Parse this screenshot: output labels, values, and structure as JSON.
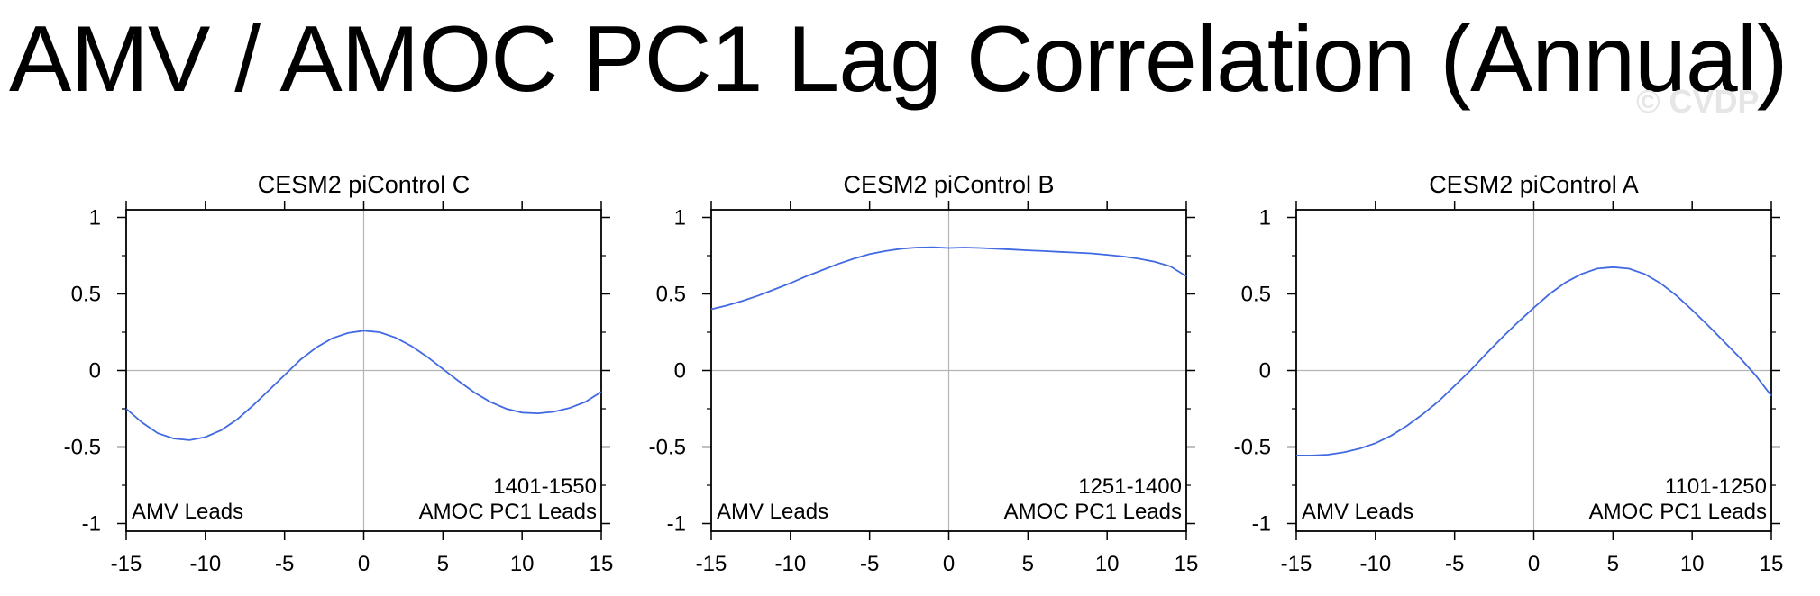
{
  "title": "AMV / AMOC PC1 Lag Correlation (Annual)",
  "watermark": "© CVDP",
  "line_color": "#4169e1",
  "chart_data": [
    {
      "type": "line",
      "title": "CESM2 piControl C",
      "period": "1401-1550",
      "left_annotation": "AMV Leads",
      "right_annotation": "AMOC PC1 Leads",
      "xlim": [
        -15,
        15
      ],
      "ylim": [
        -1.05,
        1.05
      ],
      "xticks": [
        -15,
        -10,
        -5,
        0,
        5,
        10,
        15
      ],
      "xtick_labels": [
        "-15",
        "-10",
        "-5",
        "0",
        "5",
        "10",
        "15"
      ],
      "yticks": [
        -1,
        -0.5,
        0,
        0.5,
        1
      ],
      "ytick_labels": [
        "-1",
        "-0.5",
        "0",
        "0.5",
        "1"
      ],
      "x": [
        -15,
        -14,
        -13,
        -12,
        -11,
        -10,
        -9,
        -8,
        -7,
        -6,
        -5,
        -4,
        -3,
        -2,
        -1,
        0,
        1,
        2,
        3,
        4,
        5,
        6,
        7,
        8,
        9,
        10,
        11,
        12,
        13,
        14,
        15
      ],
      "y": [
        -0.25,
        -0.34,
        -0.41,
        -0.445,
        -0.455,
        -0.435,
        -0.39,
        -0.32,
        -0.23,
        -0.13,
        -0.03,
        0.07,
        0.15,
        0.21,
        0.245,
        0.26,
        0.25,
        0.215,
        0.16,
        0.09,
        0.01,
        -0.07,
        -0.145,
        -0.205,
        -0.25,
        -0.275,
        -0.28,
        -0.27,
        -0.245,
        -0.205,
        -0.14
      ]
    },
    {
      "type": "line",
      "title": "CESM2 piControl B",
      "period": "1251-1400",
      "left_annotation": "AMV Leads",
      "right_annotation": "AMOC PC1 Leads",
      "xlim": [
        -15,
        15
      ],
      "ylim": [
        -1.05,
        1.05
      ],
      "xticks": [
        -15,
        -10,
        -5,
        0,
        5,
        10,
        15
      ],
      "xtick_labels": [
        "-15",
        "-10",
        "-5",
        "0",
        "5",
        "10",
        "15"
      ],
      "yticks": [
        -1,
        -0.5,
        0,
        0.5,
        1
      ],
      "ytick_labels": [
        "-1",
        "-0.5",
        "0",
        "0.5",
        "1"
      ],
      "x": [
        -15,
        -14,
        -13,
        -12,
        -11,
        -10,
        -9,
        -8,
        -7,
        -6,
        -5,
        -4,
        -3,
        -2,
        -1,
        0,
        1,
        2,
        3,
        4,
        5,
        6,
        7,
        8,
        9,
        10,
        11,
        12,
        13,
        14,
        15
      ],
      "y": [
        0.4,
        0.425,
        0.455,
        0.49,
        0.53,
        0.57,
        0.615,
        0.655,
        0.695,
        0.73,
        0.76,
        0.78,
        0.795,
        0.803,
        0.805,
        0.8,
        0.803,
        0.8,
        0.795,
        0.79,
        0.785,
        0.78,
        0.775,
        0.77,
        0.765,
        0.755,
        0.745,
        0.73,
        0.71,
        0.68,
        0.615
      ]
    },
    {
      "type": "line",
      "title": "CESM2 piControl A",
      "period": "1101-1250",
      "left_annotation": "AMV Leads",
      "right_annotation": "AMOC PC1 Leads",
      "xlim": [
        -15,
        15
      ],
      "ylim": [
        -1.05,
        1.05
      ],
      "xticks": [
        -15,
        -10,
        -5,
        0,
        5,
        10,
        15
      ],
      "xtick_labels": [
        "-15",
        "-10",
        "-5",
        "0",
        "5",
        "10",
        "15"
      ],
      "yticks": [
        -1,
        -0.5,
        0,
        0.5,
        1
      ],
      "ytick_labels": [
        "-1",
        "-0.5",
        "0",
        "0.5",
        "1"
      ],
      "x": [
        -15,
        -14,
        -13,
        -12,
        -11,
        -10,
        -9,
        -8,
        -7,
        -6,
        -5,
        -4,
        -3,
        -2,
        -1,
        0,
        1,
        2,
        3,
        4,
        5,
        6,
        7,
        8,
        9,
        10,
        11,
        12,
        13,
        14,
        15
      ],
      "y": [
        -0.555,
        -0.555,
        -0.55,
        -0.535,
        -0.51,
        -0.475,
        -0.425,
        -0.36,
        -0.285,
        -0.2,
        -0.1,
        0.0,
        0.11,
        0.215,
        0.315,
        0.41,
        0.5,
        0.575,
        0.63,
        0.665,
        0.675,
        0.665,
        0.63,
        0.57,
        0.49,
        0.395,
        0.295,
        0.19,
        0.085,
        -0.03,
        -0.165
      ]
    }
  ]
}
